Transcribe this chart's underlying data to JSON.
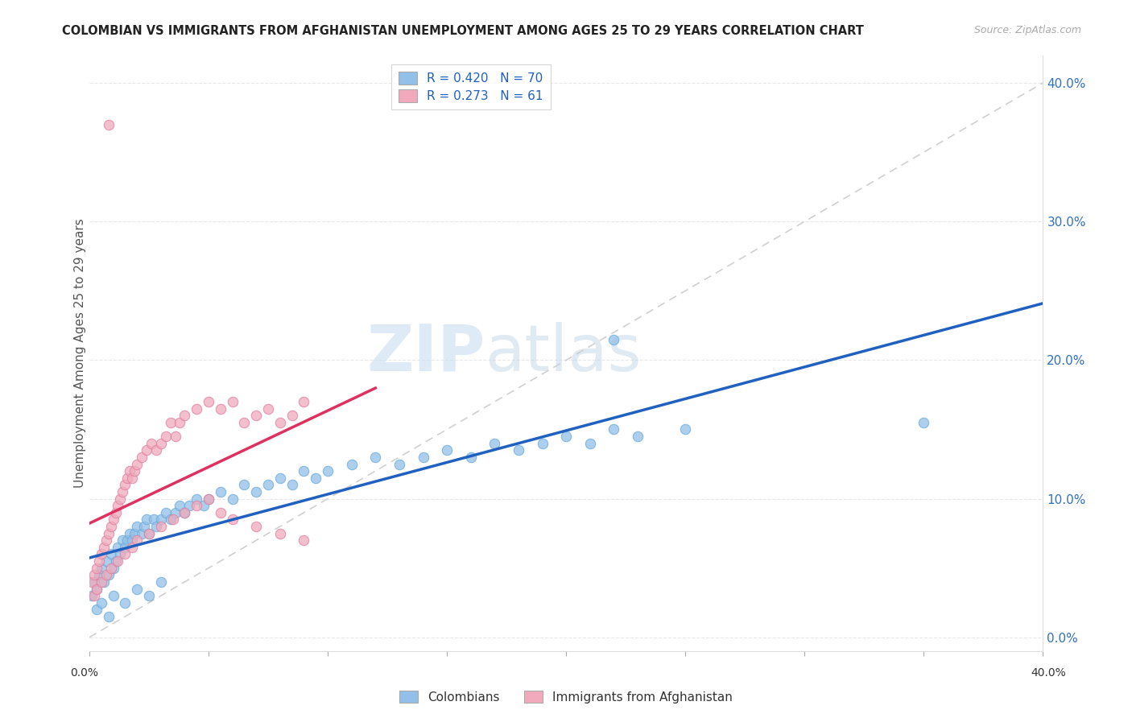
{
  "title": "COLOMBIAN VS IMMIGRANTS FROM AFGHANISTAN UNEMPLOYMENT AMONG AGES 25 TO 29 YEARS CORRELATION CHART",
  "source": "Source: ZipAtlas.com",
  "ylabel": "Unemployment Among Ages 25 to 29 years",
  "blue_color": "#92c0e8",
  "pink_color": "#f0aabb",
  "blue_edge_color": "#6aaad8",
  "pink_edge_color": "#e080a0",
  "blue_line_color": "#2060c0",
  "pink_line_color": "#e03060",
  "diag_line_color": "#d0d0d0",
  "watermark_zip": "ZIP",
  "watermark_atlas": "atlas",
  "xmin": 0.0,
  "xmax": 0.4,
  "ymin": -0.01,
  "ymax": 0.42,
  "ytick_vals": [
    0.0,
    0.1,
    0.2,
    0.3,
    0.4
  ],
  "ytick_labels": [
    "0.0%",
    "10.0%",
    "20.0%",
    "30.0%",
    "40.0%"
  ],
  "colombians_x": [
    0.001,
    0.002,
    0.003,
    0.004,
    0.005,
    0.006,
    0.007,
    0.008,
    0.009,
    0.01,
    0.011,
    0.012,
    0.013,
    0.014,
    0.015,
    0.016,
    0.017,
    0.018,
    0.019,
    0.02,
    0.022,
    0.023,
    0.024,
    0.025,
    0.027,
    0.028,
    0.03,
    0.032,
    0.034,
    0.036,
    0.038,
    0.04,
    0.042,
    0.045,
    0.048,
    0.05,
    0.055,
    0.06,
    0.065,
    0.07,
    0.075,
    0.08,
    0.085,
    0.09,
    0.095,
    0.1,
    0.11,
    0.12,
    0.13,
    0.14,
    0.15,
    0.16,
    0.17,
    0.18,
    0.19,
    0.2,
    0.21,
    0.22,
    0.23,
    0.25,
    0.003,
    0.005,
    0.008,
    0.01,
    0.015,
    0.02,
    0.025,
    0.03,
    0.22,
    0.35
  ],
  "colombians_y": [
    0.03,
    0.04,
    0.035,
    0.045,
    0.05,
    0.04,
    0.055,
    0.045,
    0.06,
    0.05,
    0.055,
    0.065,
    0.06,
    0.07,
    0.065,
    0.07,
    0.075,
    0.07,
    0.075,
    0.08,
    0.075,
    0.08,
    0.085,
    0.075,
    0.085,
    0.08,
    0.085,
    0.09,
    0.085,
    0.09,
    0.095,
    0.09,
    0.095,
    0.1,
    0.095,
    0.1,
    0.105,
    0.1,
    0.11,
    0.105,
    0.11,
    0.115,
    0.11,
    0.12,
    0.115,
    0.12,
    0.125,
    0.13,
    0.125,
    0.13,
    0.135,
    0.13,
    0.14,
    0.135,
    0.14,
    0.145,
    0.14,
    0.15,
    0.145,
    0.15,
    0.02,
    0.025,
    0.015,
    0.03,
    0.025,
    0.035,
    0.03,
    0.04,
    0.215,
    0.155
  ],
  "afghanistan_x": [
    0.001,
    0.002,
    0.003,
    0.004,
    0.005,
    0.006,
    0.007,
    0.008,
    0.009,
    0.01,
    0.011,
    0.012,
    0.013,
    0.014,
    0.015,
    0.016,
    0.017,
    0.018,
    0.019,
    0.02,
    0.022,
    0.024,
    0.026,
    0.028,
    0.03,
    0.032,
    0.034,
    0.036,
    0.038,
    0.04,
    0.045,
    0.05,
    0.055,
    0.06,
    0.065,
    0.07,
    0.075,
    0.08,
    0.085,
    0.09,
    0.002,
    0.003,
    0.005,
    0.007,
    0.009,
    0.012,
    0.015,
    0.018,
    0.02,
    0.025,
    0.03,
    0.035,
    0.04,
    0.045,
    0.05,
    0.055,
    0.06,
    0.07,
    0.08,
    0.09,
    0.008
  ],
  "afghanistan_y": [
    0.04,
    0.045,
    0.05,
    0.055,
    0.06,
    0.065,
    0.07,
    0.075,
    0.08,
    0.085,
    0.09,
    0.095,
    0.1,
    0.105,
    0.11,
    0.115,
    0.12,
    0.115,
    0.12,
    0.125,
    0.13,
    0.135,
    0.14,
    0.135,
    0.14,
    0.145,
    0.155,
    0.145,
    0.155,
    0.16,
    0.165,
    0.17,
    0.165,
    0.17,
    0.155,
    0.16,
    0.165,
    0.155,
    0.16,
    0.17,
    0.03,
    0.035,
    0.04,
    0.045,
    0.05,
    0.055,
    0.06,
    0.065,
    0.07,
    0.075,
    0.08,
    0.085,
    0.09,
    0.095,
    0.1,
    0.09,
    0.085,
    0.08,
    0.075,
    0.07,
    0.37
  ]
}
